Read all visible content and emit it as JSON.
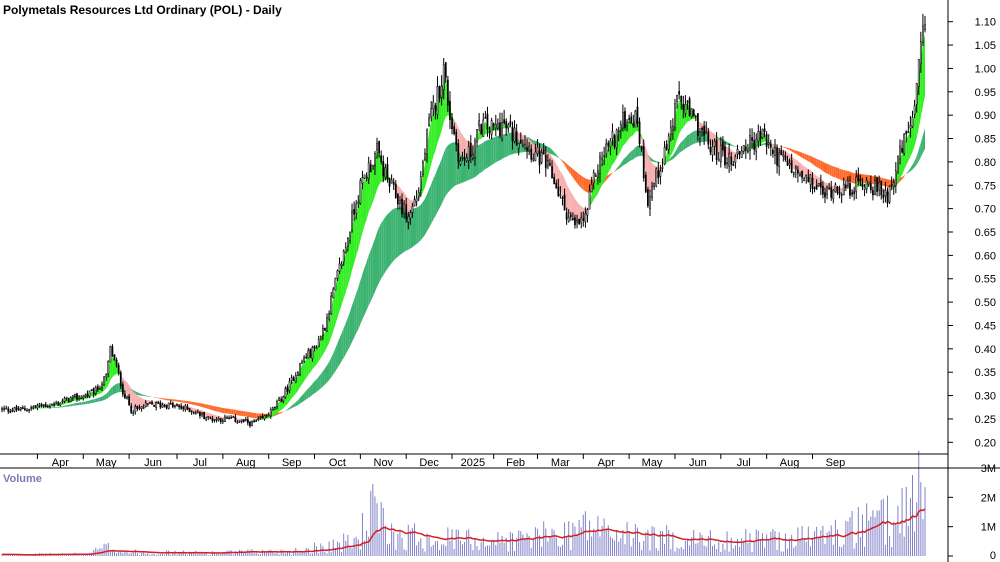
{
  "chart_data": {
    "type": "candlestick",
    "title": "Polymetals Resources Ltd Ordinary (POL) - Daily",
    "price_axis": {
      "ylim": [
        0.175,
        1.125
      ],
      "ticks": [
        "1.10",
        "1.05",
        "1.00",
        "0.95",
        "0.90",
        "0.85",
        "0.80",
        "0.75",
        "0.70",
        "0.65",
        "0.60",
        "0.55",
        "0.50",
        "0.45",
        "0.40",
        "0.35",
        "0.30",
        "0.25",
        "0.20"
      ]
    },
    "time_axis": {
      "labels": [
        "Apr",
        "May",
        "Jun",
        "Jul",
        "Aug",
        "Sep",
        "Oct",
        "Nov",
        "Dec",
        "2025",
        "Feb",
        "Mar",
        "Apr",
        "May",
        "Jun",
        "Jul",
        "Aug",
        "Sep"
      ]
    },
    "volume_panel": {
      "label": "Volume",
      "ylim": [
        0,
        3000000
      ],
      "ticks": [
        "3M",
        "2M",
        "1M",
        "0"
      ]
    },
    "series": [
      {
        "type": "close_anchor",
        "points": [
          [
            0,
            0.27
          ],
          [
            10,
            0.27
          ],
          [
            20,
            0.28
          ],
          [
            25,
            0.28
          ],
          [
            30,
            0.29
          ],
          [
            40,
            0.3
          ],
          [
            45,
            0.31
          ],
          [
            50,
            0.34
          ],
          [
            52,
            0.4
          ],
          [
            55,
            0.36
          ],
          [
            58,
            0.31
          ],
          [
            62,
            0.27
          ],
          [
            65,
            0.27
          ],
          [
            70,
            0.28
          ],
          [
            80,
            0.28
          ],
          [
            90,
            0.27
          ],
          [
            100,
            0.25
          ],
          [
            110,
            0.25
          ],
          [
            120,
            0.24
          ],
          [
            125,
            0.25
          ],
          [
            130,
            0.27
          ],
          [
            135,
            0.3
          ],
          [
            140,
            0.34
          ],
          [
            145,
            0.38
          ],
          [
            150,
            0.4
          ],
          [
            155,
            0.45
          ],
          [
            160,
            0.54
          ],
          [
            165,
            0.62
          ],
          [
            170,
            0.72
          ],
          [
            175,
            0.78
          ],
          [
            180,
            0.82
          ],
          [
            185,
            0.76
          ],
          [
            190,
            0.72
          ],
          [
            195,
            0.68
          ],
          [
            200,
            0.74
          ],
          [
            205,
            0.88
          ],
          [
            210,
            0.96
          ],
          [
            212,
            1.0
          ],
          [
            215,
            0.9
          ],
          [
            220,
            0.8
          ],
          [
            225,
            0.82
          ],
          [
            230,
            0.88
          ],
          [
            235,
            0.87
          ],
          [
            240,
            0.88
          ],
          [
            245,
            0.86
          ],
          [
            250,
            0.85
          ],
          [
            255,
            0.82
          ],
          [
            260,
            0.8
          ],
          [
            265,
            0.76
          ],
          [
            270,
            0.7
          ],
          [
            275,
            0.66
          ],
          [
            280,
            0.68
          ],
          [
            285,
            0.78
          ],
          [
            290,
            0.83
          ],
          [
            295,
            0.86
          ],
          [
            300,
            0.9
          ],
          [
            305,
            0.89
          ],
          [
            308,
            0.78
          ],
          [
            310,
            0.72
          ],
          [
            315,
            0.78
          ],
          [
            320,
            0.85
          ],
          [
            325,
            0.94
          ],
          [
            330,
            0.9
          ],
          [
            335,
            0.87
          ],
          [
            340,
            0.83
          ],
          [
            345,
            0.82
          ],
          [
            350,
            0.8
          ],
          [
            355,
            0.83
          ],
          [
            360,
            0.84
          ],
          [
            365,
            0.86
          ],
          [
            370,
            0.82
          ],
          [
            375,
            0.8
          ],
          [
            380,
            0.78
          ],
          [
            385,
            0.76
          ],
          [
            390,
            0.75
          ],
          [
            395,
            0.73
          ],
          [
            400,
            0.75
          ],
          [
            405,
            0.74
          ],
          [
            410,
            0.75
          ],
          [
            415,
            0.76
          ],
          [
            420,
            0.74
          ],
          [
            425,
            0.73
          ],
          [
            430,
            0.8
          ],
          [
            435,
            0.87
          ],
          [
            438,
            0.9
          ],
          [
            440,
            1.0
          ],
          [
            442,
            1.07
          ]
        ]
      },
      {
        "type": "volume_anchor",
        "points": [
          [
            0,
            50000
          ],
          [
            40,
            80000
          ],
          [
            52,
            380000
          ],
          [
            60,
            150000
          ],
          [
            100,
            120000
          ],
          [
            140,
            200000
          ],
          [
            170,
            600000
          ],
          [
            178,
            1800000
          ],
          [
            185,
            900000
          ],
          [
            210,
            700000
          ],
          [
            240,
            600000
          ],
          [
            270,
            900000
          ],
          [
            280,
            1200000
          ],
          [
            300,
            800000
          ],
          [
            340,
            600000
          ],
          [
            380,
            700000
          ],
          [
            400,
            900000
          ],
          [
            430,
            1500000
          ],
          [
            440,
            2900000
          ],
          [
            443,
            2600000
          ]
        ]
      }
    ]
  }
}
